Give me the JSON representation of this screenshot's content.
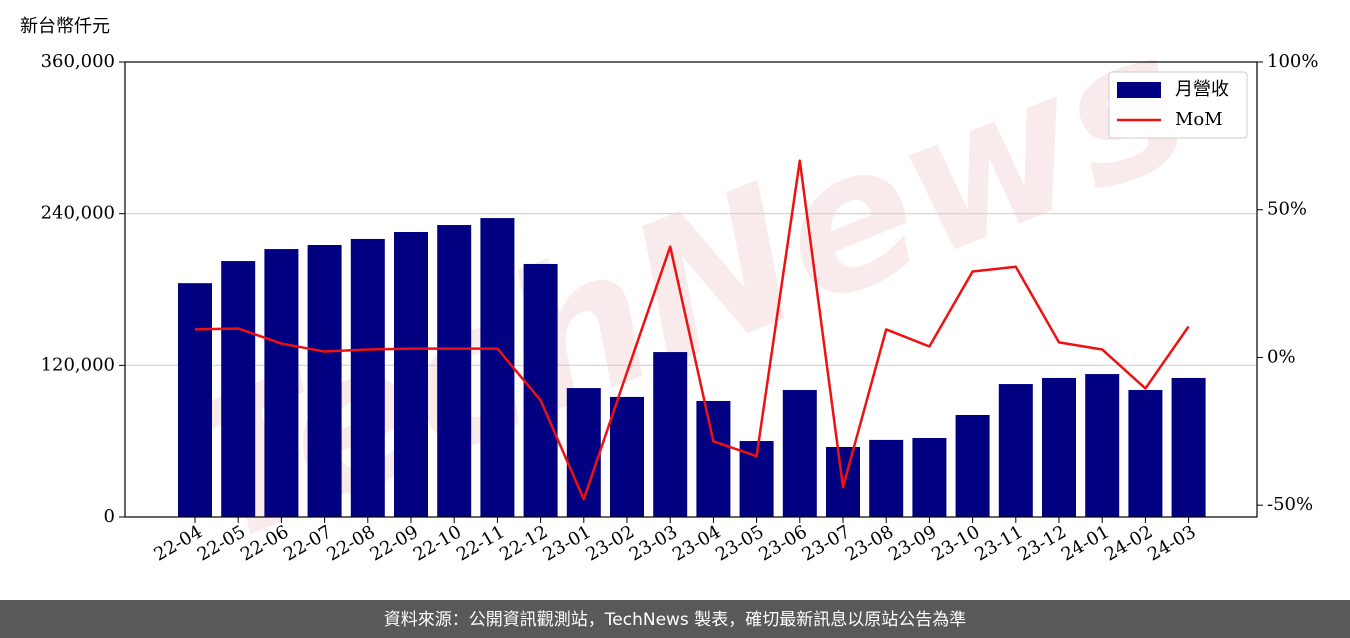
{
  "chart_data": {
    "type": "bar",
    "y_label": "新台幣仟元",
    "watermark": "TechNews",
    "categories": [
      "22-04",
      "22-05",
      "22-06",
      "22-07",
      "22-08",
      "22-09",
      "22-10",
      "22-11",
      "22-12",
      "23-01",
      "23-02",
      "23-03",
      "23-04",
      "23-05",
      "23-06",
      "23-07",
      "23-08",
      "23-09",
      "23-10",
      "23-11",
      "23-12",
      "24-01",
      "24-02",
      "24-03"
    ],
    "series": [
      {
        "name": "月營收",
        "color": "#000080",
        "type": "bar",
        "values": [
          185000,
          202500,
          212000,
          215200,
          220000,
          225500,
          231000,
          236500,
          200200,
          102000,
          95000,
          130500,
          91800,
          60100,
          100500,
          55400,
          61000,
          62500,
          80700,
          105200,
          110000,
          113100,
          100500,
          110000
        ]
      },
      {
        "name": "MoM",
        "color": "#ee1111",
        "type": "line",
        "axis": "y2",
        "values": [
          9.5,
          9.8,
          4.7,
          2.0,
          2.7,
          3.0,
          3.0,
          3.0,
          -14.5,
          -48.0,
          -5.0,
          37.5,
          -28.4,
          -33.4,
          66.6,
          -43.9,
          9.5,
          3.7,
          29.1,
          30.7,
          5.1,
          2.7,
          -10.5,
          10.5
        ]
      }
    ],
    "ylim": [
      0,
      360000
    ],
    "yticks": [
      {
        "value": 0,
        "label": "0"
      },
      {
        "value": 120000,
        "label": "120,000"
      },
      {
        "value": 240000,
        "label": "240,000"
      },
      {
        "value": 360000,
        "label": "360,000"
      }
    ],
    "y2lim": [
      -54,
      100
    ],
    "y2ticks": [
      {
        "value": -50,
        "label": "-50%"
      },
      {
        "value": 0,
        "label": "0%"
      },
      {
        "value": 50,
        "label": "50%"
      },
      {
        "value": 100,
        "label": "100%"
      }
    ],
    "grid": true,
    "legend": "upper right"
  },
  "footer": {
    "text": "資料來源：公開資訊觀測站，TechNews 製表，確切最新訊息以原站公告為準"
  }
}
